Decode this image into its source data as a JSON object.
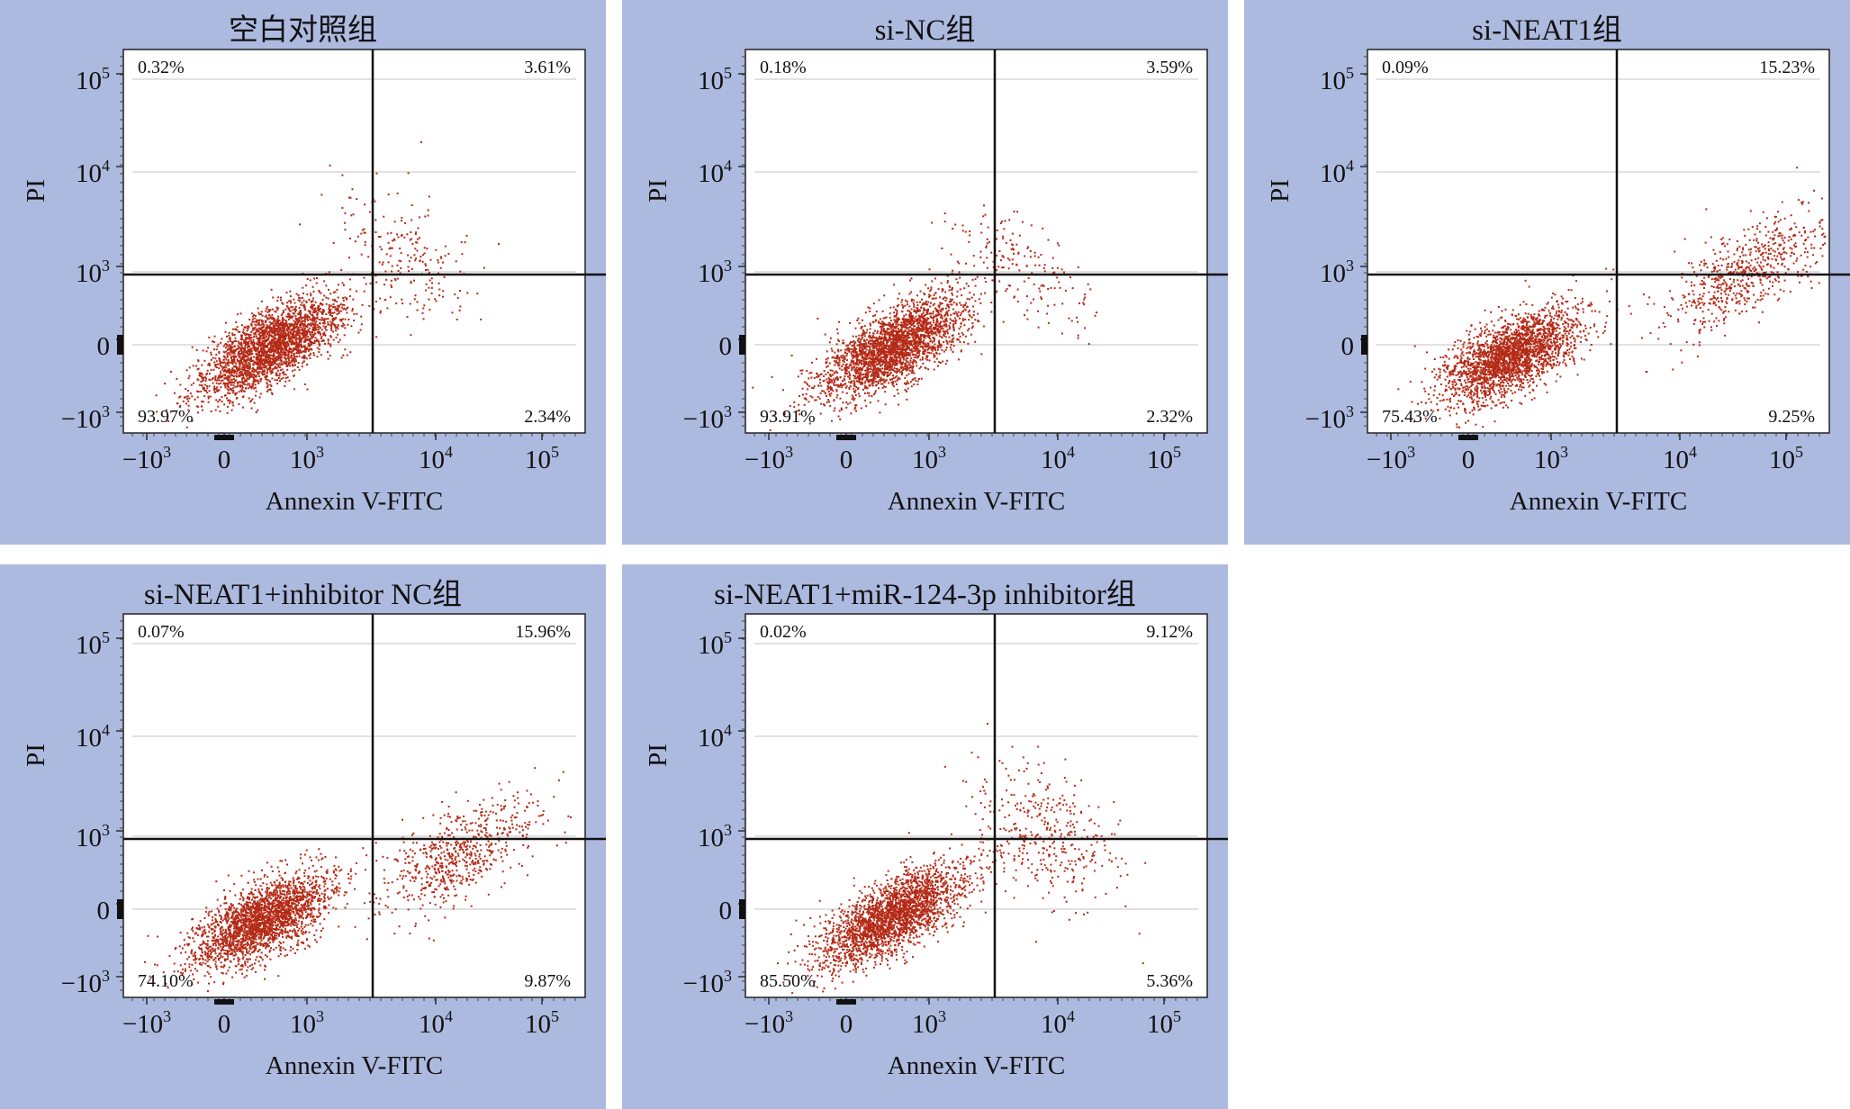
{
  "figure": {
    "colors": {
      "panel_bg": "#adbadf",
      "plot_bg": "#ffffff",
      "dots": "#b42a16",
      "gate": "#111111",
      "grid": "#cfcfcf"
    }
  },
  "axes": {
    "x_label": "Annexin V-FITC",
    "y_label": "PI",
    "x_ticks": [
      {
        "base": "−10",
        "exp": "3"
      },
      {
        "base": "0",
        "exp": ""
      },
      {
        "base": "10",
        "exp": "3"
      },
      {
        "base": "10",
        "exp": "4"
      },
      {
        "base": "10",
        "exp": "5"
      }
    ],
    "y_ticks": [
      {
        "base": "10",
        "exp": "5"
      },
      {
        "base": "10",
        "exp": "4"
      },
      {
        "base": "10",
        "exp": "3"
      },
      {
        "base": "0",
        "exp": ""
      },
      {
        "base": "−10",
        "exp": "3"
      }
    ]
  },
  "chart_data": [
    {
      "type": "scatter",
      "title": "空白对照组",
      "xlabel": "Annexin V-FITC",
      "ylabel": "PI",
      "quadrants": {
        "upper_left": "0.32%",
        "upper_right": "3.61%",
        "lower_left": "93.97%",
        "lower_right": "2.34%"
      }
    },
    {
      "type": "scatter",
      "title": "si-NC组",
      "xlabel": "Annexin V-FITC",
      "ylabel": "PI",
      "quadrants": {
        "upper_left": "0.18%",
        "upper_right": "3.59%",
        "lower_left": "93.91%",
        "lower_right": "2.32%"
      }
    },
    {
      "type": "scatter",
      "title": "si-NEAT1组",
      "xlabel": "Annexin V-FITC",
      "ylabel": "PI",
      "quadrants": {
        "upper_left": "0.09%",
        "upper_right": "15.23%",
        "lower_left": "75.43%",
        "lower_right": "9.25%"
      }
    },
    {
      "type": "scatter",
      "title": "si-NEAT1+inhibitor NC组",
      "xlabel": "Annexin V-FITC",
      "ylabel": "PI",
      "quadrants": {
        "upper_left": "0.07%",
        "upper_right": "15.96%",
        "lower_left": "74.10%",
        "lower_right": "9.87%"
      }
    },
    {
      "type": "scatter",
      "title": "si-NEAT1+miR-124-3p inhibitor组",
      "xlabel": "Annexin V-FITC",
      "ylabel": "PI",
      "quadrants": {
        "upper_left": "0.02%",
        "upper_right": "9.12%",
        "lower_left": "85.50%",
        "lower_right": "5.36%"
      }
    }
  ]
}
